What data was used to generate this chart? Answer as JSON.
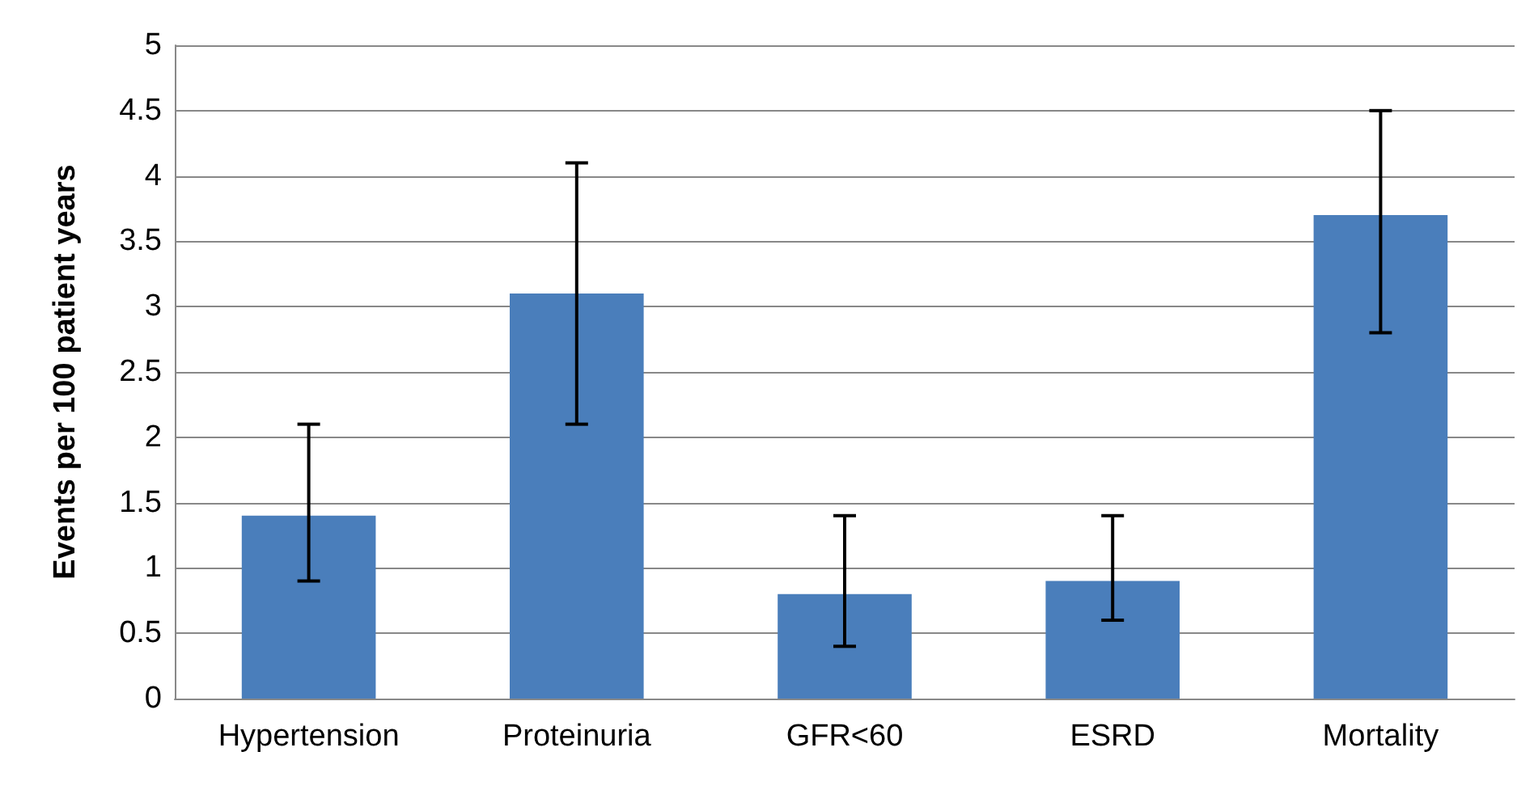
{
  "chart_data": {
    "type": "bar",
    "ylabel": "Events per 100 patient years",
    "categories": [
      "Hypertension",
      "Proteinuria",
      "GFR<60",
      "ESRD",
      "Mortality"
    ],
    "values": [
      1.4,
      3.1,
      0.8,
      0.9,
      3.7
    ],
    "errors": [
      [
        0.9,
        2.1
      ],
      [
        2.1,
        4.1
      ],
      [
        0.4,
        1.4
      ],
      [
        0.6,
        1.4
      ],
      [
        2.8,
        4.5
      ]
    ],
    "color": "#4a7ebb",
    "ylim": [
      0,
      5
    ],
    "yticks": [
      0,
      0.5,
      1,
      1.5,
      2,
      2.5,
      3,
      3.5,
      4,
      4.5,
      5
    ],
    "grid": "y"
  }
}
